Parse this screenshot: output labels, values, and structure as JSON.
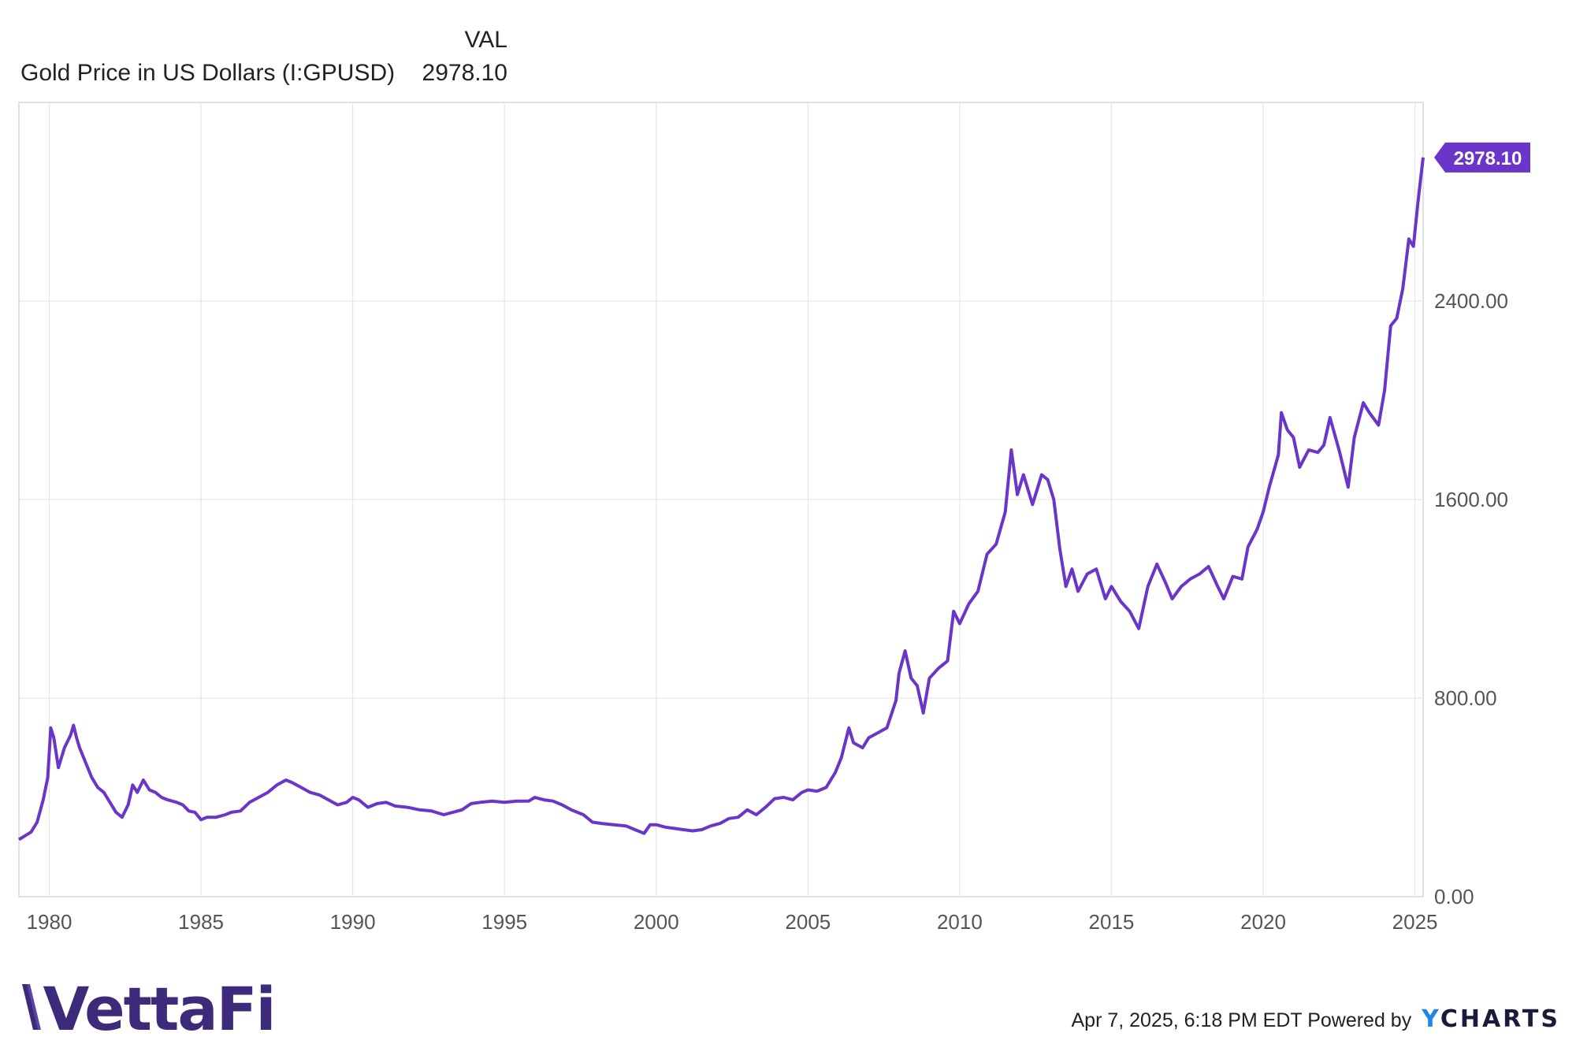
{
  "legend": {
    "column_header": "VAL",
    "series_name": "Gold Price in US Dollars (I:GPUSD)",
    "series_value": "2978.10"
  },
  "colors": {
    "series": "#6a35c9",
    "grid": "#e6e6e6",
    "axis_text": "#555555",
    "brand": "#3d2a7a",
    "ycharts_accent": "#1e88e5"
  },
  "footer": {
    "brand": "VettaFi",
    "timestamp": "Apr 7, 2025, 6:18 PM EDT",
    "powered_by": "Powered by",
    "ycharts_logo": "YCHARTS"
  },
  "chart_data": {
    "type": "line",
    "title": "",
    "xlabel": "",
    "ylabel": "",
    "xlim": [
      1979.0,
      2025.27
    ],
    "ylim": [
      0,
      3200
    ],
    "y_ticks": [
      0,
      800,
      1600,
      2400
    ],
    "y_tick_labels": [
      "0.00",
      "800.00",
      "1600.00",
      "2400.00"
    ],
    "x_ticks": [
      1980,
      1985,
      1990,
      1995,
      2000,
      2005,
      2010,
      2015,
      2020,
      2025
    ],
    "x_tick_labels": [
      "1980",
      "1985",
      "1990",
      "1995",
      "2000",
      "2005",
      "2010",
      "2015",
      "2020",
      "2025"
    ],
    "grid": true,
    "y_axis_side": "right",
    "last_value_label": "2978.10",
    "series": [
      {
        "name": "Gold Price in US Dollars (I:GPUSD)",
        "points": [
          [
            1979.0,
            230
          ],
          [
            1979.2,
            245
          ],
          [
            1979.4,
            260
          ],
          [
            1979.6,
            300
          ],
          [
            1979.8,
            390
          ],
          [
            1979.95,
            480
          ],
          [
            1980.05,
            680
          ],
          [
            1980.15,
            640
          ],
          [
            1980.3,
            520
          ],
          [
            1980.5,
            600
          ],
          [
            1980.7,
            650
          ],
          [
            1980.8,
            690
          ],
          [
            1980.9,
            640
          ],
          [
            1981.0,
            600
          ],
          [
            1981.2,
            540
          ],
          [
            1981.4,
            480
          ],
          [
            1981.6,
            440
          ],
          [
            1981.8,
            420
          ],
          [
            1982.0,
            380
          ],
          [
            1982.2,
            340
          ],
          [
            1982.4,
            320
          ],
          [
            1982.6,
            370
          ],
          [
            1982.75,
            450
          ],
          [
            1982.9,
            420
          ],
          [
            1983.1,
            470
          ],
          [
            1983.3,
            430
          ],
          [
            1983.5,
            420
          ],
          [
            1983.7,
            400
          ],
          [
            1983.9,
            390
          ],
          [
            1984.2,
            380
          ],
          [
            1984.4,
            370
          ],
          [
            1984.6,
            345
          ],
          [
            1984.8,
            340
          ],
          [
            1985.0,
            310
          ],
          [
            1985.2,
            320
          ],
          [
            1985.5,
            320
          ],
          [
            1985.8,
            330
          ],
          [
            1986.0,
            340
          ],
          [
            1986.3,
            345
          ],
          [
            1986.6,
            380
          ],
          [
            1986.9,
            400
          ],
          [
            1987.2,
            420
          ],
          [
            1987.5,
            450
          ],
          [
            1987.8,
            470
          ],
          [
            1988.0,
            460
          ],
          [
            1988.3,
            440
          ],
          [
            1988.6,
            420
          ],
          [
            1988.9,
            410
          ],
          [
            1989.2,
            390
          ],
          [
            1989.5,
            370
          ],
          [
            1989.8,
            380
          ],
          [
            1990.0,
            400
          ],
          [
            1990.2,
            390
          ],
          [
            1990.5,
            360
          ],
          [
            1990.8,
            375
          ],
          [
            1991.1,
            380
          ],
          [
            1991.4,
            365
          ],
          [
            1991.8,
            360
          ],
          [
            1992.2,
            350
          ],
          [
            1992.6,
            345
          ],
          [
            1993.0,
            330
          ],
          [
            1993.3,
            340
          ],
          [
            1993.6,
            350
          ],
          [
            1993.9,
            375
          ],
          [
            1994.2,
            380
          ],
          [
            1994.6,
            385
          ],
          [
            1995.0,
            380
          ],
          [
            1995.4,
            385
          ],
          [
            1995.8,
            385
          ],
          [
            1996.0,
            400
          ],
          [
            1996.3,
            390
          ],
          [
            1996.6,
            385
          ],
          [
            1996.9,
            370
          ],
          [
            1997.2,
            350
          ],
          [
            1997.6,
            330
          ],
          [
            1997.9,
            300
          ],
          [
            1998.2,
            295
          ],
          [
            1998.6,
            290
          ],
          [
            1999.0,
            285
          ],
          [
            1999.3,
            270
          ],
          [
            1999.6,
            255
          ],
          [
            1999.8,
            290
          ],
          [
            2000.0,
            290
          ],
          [
            2000.3,
            280
          ],
          [
            2000.6,
            275
          ],
          [
            2000.9,
            270
          ],
          [
            2001.2,
            265
          ],
          [
            2001.5,
            270
          ],
          [
            2001.8,
            285
          ],
          [
            2002.1,
            295
          ],
          [
            2002.4,
            315
          ],
          [
            2002.7,
            320
          ],
          [
            2003.0,
            350
          ],
          [
            2003.3,
            330
          ],
          [
            2003.6,
            360
          ],
          [
            2003.9,
            395
          ],
          [
            2004.2,
            400
          ],
          [
            2004.5,
            390
          ],
          [
            2004.8,
            420
          ],
          [
            2005.0,
            430
          ],
          [
            2005.3,
            425
          ],
          [
            2005.6,
            440
          ],
          [
            2005.9,
            500
          ],
          [
            2006.1,
            560
          ],
          [
            2006.35,
            680
          ],
          [
            2006.5,
            620
          ],
          [
            2006.8,
            600
          ],
          [
            2007.0,
            640
          ],
          [
            2007.3,
            660
          ],
          [
            2007.6,
            680
          ],
          [
            2007.9,
            790
          ],
          [
            2008.0,
            900
          ],
          [
            2008.2,
            990
          ],
          [
            2008.4,
            880
          ],
          [
            2008.6,
            850
          ],
          [
            2008.8,
            740
          ],
          [
            2009.0,
            880
          ],
          [
            2009.3,
            920
          ],
          [
            2009.6,
            950
          ],
          [
            2009.8,
            1150
          ],
          [
            2010.0,
            1100
          ],
          [
            2010.3,
            1180
          ],
          [
            2010.6,
            1230
          ],
          [
            2010.9,
            1380
          ],
          [
            2011.2,
            1420
          ],
          [
            2011.5,
            1550
          ],
          [
            2011.7,
            1800
          ],
          [
            2011.9,
            1620
          ],
          [
            2012.1,
            1700
          ],
          [
            2012.4,
            1580
          ],
          [
            2012.7,
            1700
          ],
          [
            2012.9,
            1680
          ],
          [
            2013.1,
            1600
          ],
          [
            2013.3,
            1400
          ],
          [
            2013.5,
            1250
          ],
          [
            2013.7,
            1320
          ],
          [
            2013.9,
            1230
          ],
          [
            2014.2,
            1300
          ],
          [
            2014.5,
            1320
          ],
          [
            2014.8,
            1200
          ],
          [
            2015.0,
            1250
          ],
          [
            2015.3,
            1190
          ],
          [
            2015.6,
            1150
          ],
          [
            2015.9,
            1080
          ],
          [
            2016.2,
            1250
          ],
          [
            2016.5,
            1340
          ],
          [
            2016.8,
            1260
          ],
          [
            2017.0,
            1200
          ],
          [
            2017.3,
            1250
          ],
          [
            2017.6,
            1280
          ],
          [
            2017.9,
            1300
          ],
          [
            2018.2,
            1330
          ],
          [
            2018.5,
            1250
          ],
          [
            2018.7,
            1200
          ],
          [
            2019.0,
            1290
          ],
          [
            2019.3,
            1280
          ],
          [
            2019.5,
            1410
          ],
          [
            2019.8,
            1480
          ],
          [
            2020.0,
            1550
          ],
          [
            2020.2,
            1650
          ],
          [
            2020.5,
            1780
          ],
          [
            2020.6,
            1950
          ],
          [
            2020.8,
            1880
          ],
          [
            2021.0,
            1850
          ],
          [
            2021.2,
            1730
          ],
          [
            2021.5,
            1800
          ],
          [
            2021.8,
            1790
          ],
          [
            2022.0,
            1820
          ],
          [
            2022.2,
            1930
          ],
          [
            2022.5,
            1800
          ],
          [
            2022.8,
            1650
          ],
          [
            2023.0,
            1850
          ],
          [
            2023.3,
            1990
          ],
          [
            2023.5,
            1950
          ],
          [
            2023.8,
            1900
          ],
          [
            2024.0,
            2040
          ],
          [
            2024.2,
            2300
          ],
          [
            2024.4,
            2330
          ],
          [
            2024.6,
            2450
          ],
          [
            2024.8,
            2650
          ],
          [
            2024.95,
            2620
          ],
          [
            2025.1,
            2800
          ],
          [
            2025.27,
            2978.1
          ]
        ]
      }
    ]
  }
}
